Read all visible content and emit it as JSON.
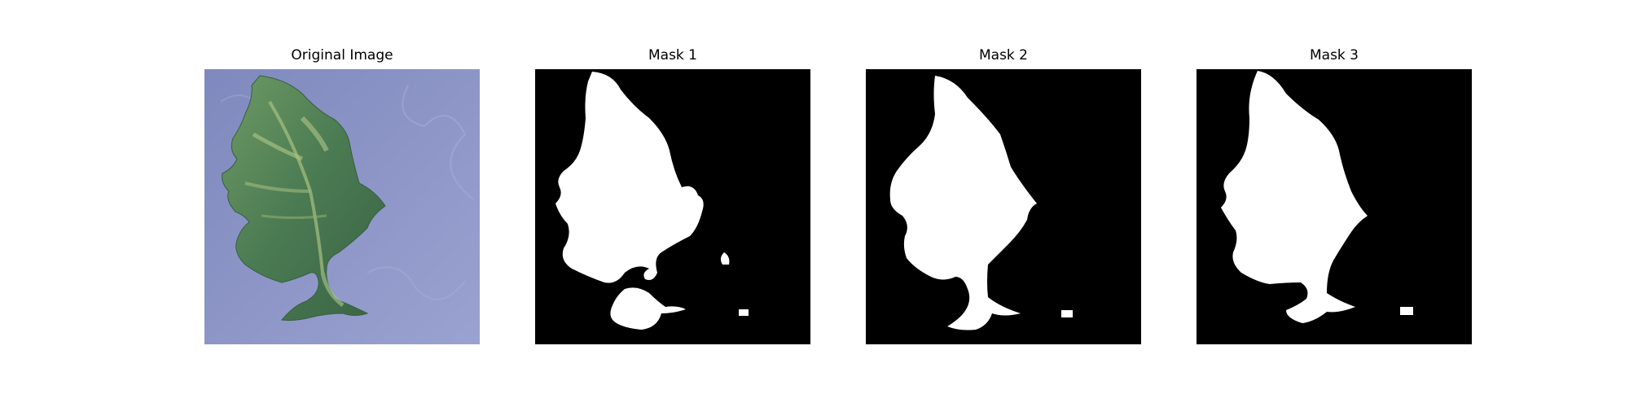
{
  "figure": {
    "panels": [
      {
        "title": "Original Image",
        "content": "photo of a green leaf with stem on a blue-gray textured background"
      },
      {
        "title": "Mask 1",
        "content": "binary segmentation mask"
      },
      {
        "title": "Mask 2",
        "content": "binary segmentation mask"
      },
      {
        "title": "Mask 3",
        "content": "binary segmentation mask"
      }
    ]
  },
  "colors": {
    "background_photo": "#8a93c4",
    "leaf_dark": "#3f6e4a",
    "leaf_light": "#8fae6e",
    "mask_background": "#000000",
    "mask_foreground": "#ffffff"
  }
}
